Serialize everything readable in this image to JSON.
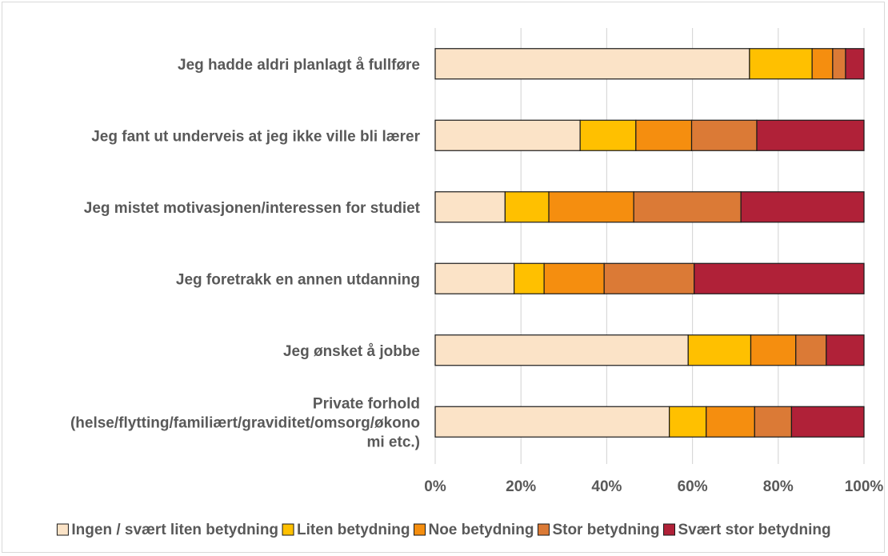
{
  "chart_data": {
    "type": "bar",
    "orientation": "horizontal",
    "stacked": "percent",
    "title": "",
    "xlabel": "",
    "ylabel": "",
    "xlim": [
      0,
      100
    ],
    "x_ticks": [
      "0%",
      "20%",
      "40%",
      "60%",
      "80%",
      "100%"
    ],
    "grid": "vertical",
    "legend_position": "bottom",
    "categories": [
      [
        "Jeg hadde aldri planlagt å fullføre"
      ],
      [
        "Jeg fant ut underveis at jeg ikke ville bli lærer"
      ],
      [
        "Jeg mistet motivasjonen/interessen for studiet"
      ],
      [
        "Jeg foretrakk en annen utdanning"
      ],
      [
        "Jeg ønsket å jobbe"
      ],
      [
        "Private forhold",
        "(helse/flytting/familiært/graviditet/omsorg/økono",
        "mi etc.)"
      ]
    ],
    "series": [
      {
        "name": "Ingen / svært liten betydning",
        "color": "#FBE3C7",
        "values": [
          73.3,
          33.8,
          16.3,
          18.4,
          59.0,
          54.6
        ]
      },
      {
        "name": "Liten betydning",
        "color": "#FFC000",
        "values": [
          14.6,
          13.0,
          10.2,
          7.0,
          14.6,
          8.6
        ]
      },
      {
        "name": "Noe betydning",
        "color": "#F58E0F",
        "values": [
          4.8,
          13.0,
          19.8,
          14.0,
          10.5,
          11.3
        ]
      },
      {
        "name": "Stor betydning",
        "color": "#DB7A36",
        "values": [
          3.0,
          15.2,
          25.0,
          21.0,
          7.1,
          8.6
        ]
      },
      {
        "name": "Svært stor betydning",
        "color": "#B02138",
        "values": [
          4.3,
          25.0,
          28.7,
          39.6,
          8.8,
          16.9
        ]
      }
    ]
  }
}
